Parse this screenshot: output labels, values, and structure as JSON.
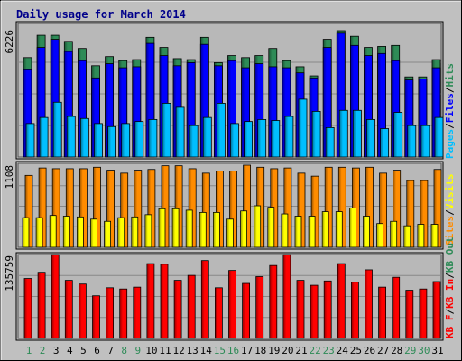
{
  "chart_data": {
    "type": "bar",
    "title": "Daily usage for March 2014",
    "colors": {
      "background": "#c0c0c0",
      "plot_background": "#b8b8b8",
      "border": "#000000",
      "grid": "#888888",
      "title": "#00008b",
      "hits": "#2e8b57",
      "files": "#0000ff",
      "pages": "#00bfff",
      "visits": "#ffff00",
      "sites": "#ff8c00",
      "kb_in": "#ff0000",
      "kb_out": "#2e8b57",
      "weekday": "#000000",
      "weekend": "#2e8b57"
    },
    "categories": [
      "1",
      "2",
      "3",
      "4",
      "5",
      "6",
      "7",
      "8",
      "9",
      "10",
      "11",
      "12",
      "13",
      "14",
      "15",
      "16",
      "17",
      "18",
      "19",
      "20",
      "21",
      "22",
      "23",
      "24",
      "25",
      "26",
      "27",
      "28",
      "29",
      "30",
      "31"
    ],
    "weekend_days": [
      1,
      2,
      8,
      9,
      15,
      16,
      22,
      23,
      29,
      30
    ],
    "panels": [
      {
        "id": "top",
        "max_label": "6226",
        "ylim": [
          0,
          6226
        ],
        "legend": [
          {
            "text": "Pages",
            "color_key": "pages"
          },
          {
            "text": "/",
            "color_key": "weekday"
          },
          {
            "text": "Files",
            "color_key": "files"
          },
          {
            "text": "/",
            "color_key": "weekday"
          },
          {
            "text": "Hits",
            "color_key": "hits"
          }
        ],
        "series": [
          {
            "name": "Hits",
            "color_key": "hits",
            "values": [
              4900,
              6000,
              6000,
              5700,
              5350,
              4500,
              4950,
              4750,
              4800,
              5900,
              5400,
              4850,
              4800,
              5900,
              4650,
              5000,
              4900,
              5000,
              5350,
              4750,
              4450,
              4000,
              5800,
              6226,
              5950,
              5400,
              5450,
              5500,
              3950,
              3950,
              4800
            ]
          },
          {
            "name": "Files",
            "color_key": "files",
            "values": [
              4300,
              5400,
              5800,
              5200,
              4750,
              3900,
              4600,
              4400,
              4450,
              5600,
              5000,
              4500,
              4650,
              5550,
              4500,
              4750,
              4400,
              4600,
              4450,
              4400,
              4150,
              3900,
              5400,
              6100,
              5500,
              5000,
              5100,
              4750,
              3800,
              3850,
              4400
            ]
          },
          {
            "name": "Pages",
            "color_key": "pages",
            "values": [
              1650,
              1950,
              2700,
              2000,
              1900,
              1650,
              1500,
              1650,
              1750,
              1850,
              2650,
              2450,
              1550,
              1950,
              2650,
              1650,
              1750,
              1850,
              1800,
              2000,
              2850,
              2250,
              1450,
              2300,
              2300,
              1850,
              1400,
              2200,
              1550,
              1550,
              1950
            ]
          }
        ]
      },
      {
        "id": "middle",
        "max_label": "1108",
        "ylim": [
          0,
          1108
        ],
        "legend": [
          {
            "text": "Sites",
            "color_key": "sites"
          },
          {
            "text": "/",
            "color_key": "weekday"
          },
          {
            "text": "Visits",
            "color_key": "visits"
          }
        ],
        "series": [
          {
            "name": "Sites",
            "color_key": "sites",
            "values": [
              970,
              1070,
              1060,
              1060,
              1060,
              1080,
              1040,
              1000,
              1040,
              1050,
              1100,
              1100,
              1060,
              1000,
              1030,
              1030,
              1108,
              1080,
              1060,
              1070,
              1000,
              960,
              1080,
              1080,
              1070,
              1080,
              1000,
              1040,
              900,
              900,
              1050
            ]
          },
          {
            "name": "Visits",
            "color_key": "visits",
            "values": [
              400,
              400,
              430,
              420,
              410,
              380,
              350,
              400,
              410,
              440,
              520,
              520,
              500,
              470,
              470,
              380,
              490,
              560,
              540,
              450,
              420,
              420,
              480,
              480,
              530,
              420,
              320,
              350,
              290,
              310,
              310
            ]
          }
        ]
      },
      {
        "id": "bottom",
        "max_label": "135759",
        "ylim": [
          0,
          135759
        ],
        "legend": [
          {
            "text": "KB F",
            "color_key": "kb_in"
          },
          {
            "text": "/",
            "color_key": "weekday"
          },
          {
            "text": "KB In",
            "color_key": "kb_in"
          },
          {
            "text": "/",
            "color_key": "weekday"
          },
          {
            "text": "KB Out",
            "color_key": "kb_out"
          }
        ],
        "series": [
          {
            "name": "KB In",
            "color_key": "kb_in",
            "values": [
              97000,
              107000,
              135759,
              94000,
              88000,
              69000,
              82000,
              80000,
              83000,
              121000,
              120000,
              94000,
              102000,
              126000,
              82000,
              110000,
              89000,
              100000,
              118000,
              135759,
              94000,
              86000,
              93000,
              121000,
              91000,
              111000,
              83000,
              99000,
              78000,
              80000,
              92000
            ]
          }
        ]
      }
    ]
  }
}
